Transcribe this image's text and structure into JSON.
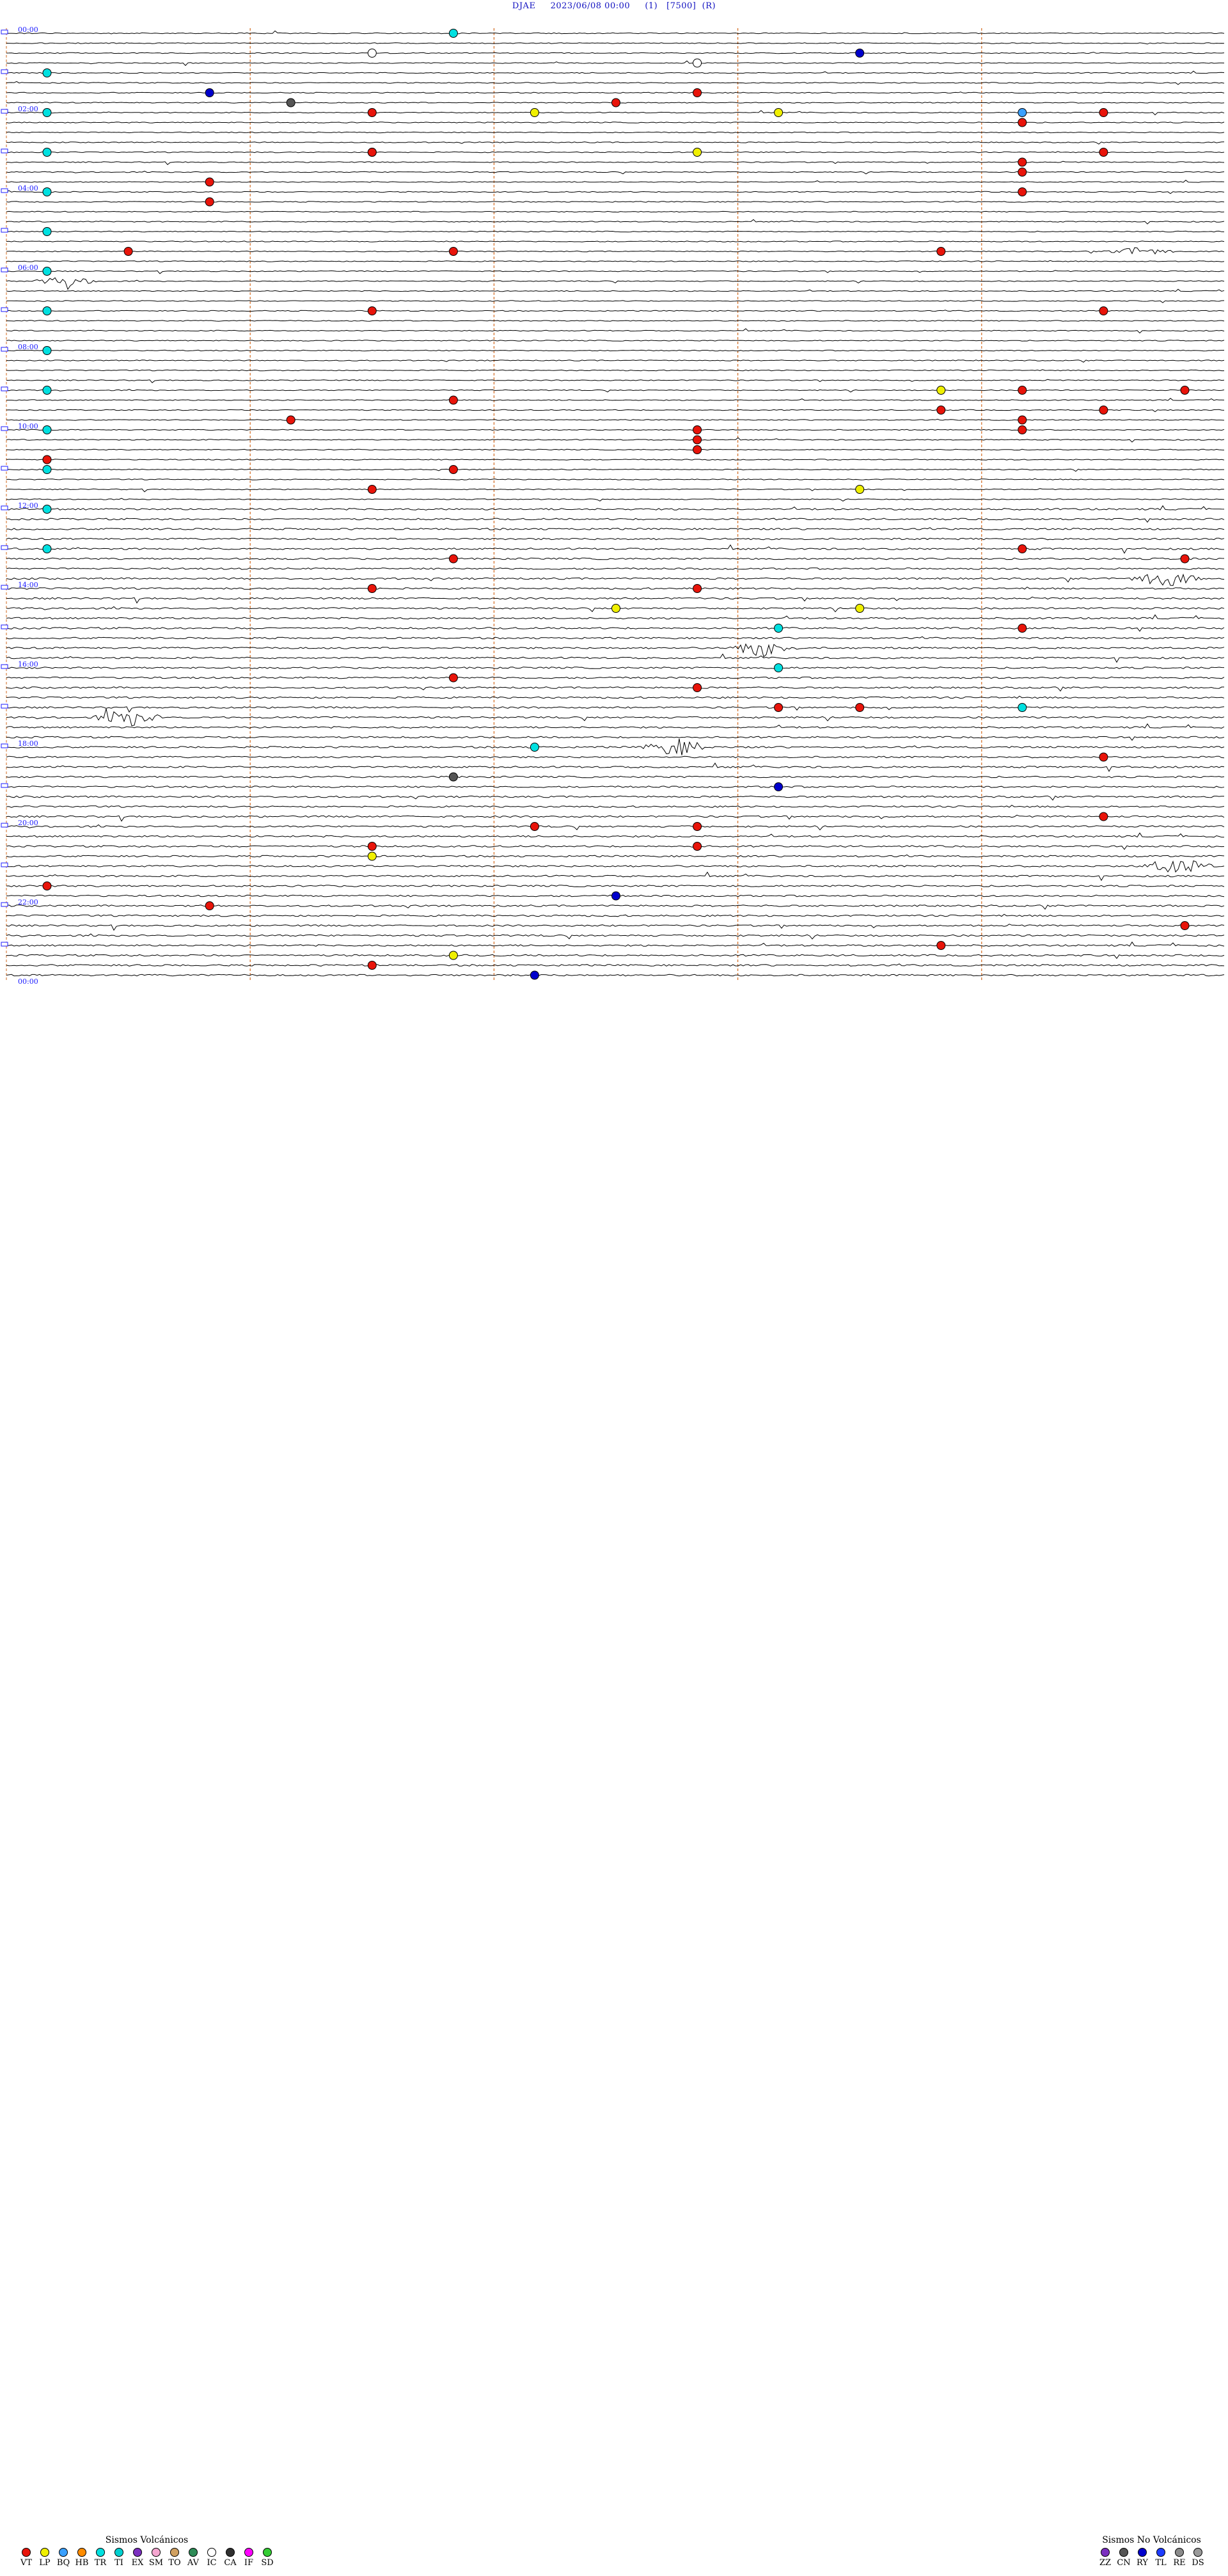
{
  "header": {
    "station": "DJAE",
    "datetime": "2023/06/08 00:00",
    "channel": "(1)",
    "scale": "[7500]",
    "mode": "(R)"
  },
  "chart_data": {
    "type": "helicorder",
    "start": "2023/06/08 00:00",
    "end": "2023/06/09 00:00",
    "rows": 96,
    "row_minutes": 15,
    "hour_labels": [
      "00:00",
      "02:00",
      "04:00",
      "06:00",
      "08:00",
      "10:00",
      "12:00",
      "14:00",
      "16:00",
      "18:00",
      "20:00",
      "22:00",
      "00:00"
    ],
    "column_marker_minutes": [
      3,
      6,
      9,
      12
    ],
    "colors": {
      "trace": "#000000",
      "hour_label": "#1a1aff",
      "minute_marker": "#d2691e",
      "VT": "#e8140a",
      "LP": "#f0f000",
      "HB": "#ff8c00",
      "TR": "#00e0e0",
      "CN": "#555555",
      "IC": "#ffffff",
      "BQ": "#3aa0ff",
      "AV": "#2e8b57",
      "RY": "#0000cc"
    },
    "events": [
      {
        "time": "00:05",
        "type": "TR"
      },
      {
        "time": "01:00",
        "type": "TR"
      },
      {
        "time": "02:00",
        "type": "TR"
      },
      {
        "time": "03:00",
        "type": "TR"
      },
      {
        "time": "04:00",
        "type": "TR"
      },
      {
        "time": "05:00",
        "type": "TR"
      },
      {
        "time": "06:00",
        "type": "TR"
      },
      {
        "time": "07:00",
        "type": "TR"
      },
      {
        "time": "08:00",
        "type": "TR"
      },
      {
        "time": "09:00",
        "type": "TR"
      },
      {
        "time": "10:00",
        "type": "TR"
      },
      {
        "time": "11:00",
        "type": "TR"
      },
      {
        "time": "00:34",
        "type": "IC"
      },
      {
        "time": "00:40",
        "type": "RY"
      },
      {
        "time": "00:53",
        "type": "IC"
      },
      {
        "time": "01:32",
        "type": "RY"
      },
      {
        "time": "01:38",
        "type": "VT"
      },
      {
        "time": "01:48",
        "type": "CN"
      },
      {
        "time": "01:52",
        "type": "VT"
      },
      {
        "time": "02:04",
        "type": "VT"
      },
      {
        "time": "02:06",
        "type": "LP"
      },
      {
        "time": "02:09",
        "type": "LP"
      },
      {
        "time": "02:12",
        "type": "BQ"
      },
      {
        "time": "02:13",
        "type": "VT"
      },
      {
        "time": "02:27",
        "type": "VT"
      },
      {
        "time": "03:04",
        "type": "LP"
      },
      {
        "time": "03:04",
        "type": "VT"
      },
      {
        "time": "03:08",
        "type": "LP"
      },
      {
        "time": "03:13",
        "type": "VT"
      },
      {
        "time": "03:27",
        "type": "VT"
      },
      {
        "time": "03:42",
        "type": "VT"
      },
      {
        "time": "03:47",
        "type": "VT"
      },
      {
        "time": "04:12",
        "type": "VT"
      },
      {
        "time": "04:17",
        "type": "VT"
      },
      {
        "time": "05:31",
        "type": "VT"
      },
      {
        "time": "05:35",
        "type": "VT"
      },
      {
        "time": "05:41",
        "type": "VT"
      },
      {
        "time": "07:04",
        "type": "VT"
      },
      {
        "time": "07:13",
        "type": "VT"
      },
      {
        "time": "09:11",
        "type": "LP"
      },
      {
        "time": "09:12",
        "type": "VT"
      },
      {
        "time": "09:14",
        "type": "VT"
      },
      {
        "time": "09:20",
        "type": "VT"
      },
      {
        "time": "09:41",
        "type": "VT"
      },
      {
        "time": "09:43",
        "type": "VT"
      },
      {
        "time": "09:48",
        "type": "VT"
      },
      {
        "time": "09:57",
        "type": "VT"
      },
      {
        "time": "10:08",
        "type": "VT"
      },
      {
        "time": "10:12",
        "type": "VT"
      },
      {
        "time": "10:23",
        "type": "VT"
      },
      {
        "time": "10:38",
        "type": "VT"
      },
      {
        "time": "10:45",
        "type": "VT"
      },
      {
        "time": "11:05",
        "type": "VT"
      },
      {
        "time": "11:34",
        "type": "VT"
      },
      {
        "time": "11:40",
        "type": "LP"
      },
      {
        "time": "12:00",
        "type": "TR"
      },
      {
        "time": "13:00",
        "type": "TR"
      },
      {
        "time": "13:12",
        "type": "VT"
      },
      {
        "time": "13:20",
        "type": "VT"
      },
      {
        "time": "13:29",
        "type": "VT"
      },
      {
        "time": "14:04",
        "type": "VT"
      },
      {
        "time": "14:08",
        "type": "VT"
      },
      {
        "time": "14:37",
        "type": "LP"
      },
      {
        "time": "14:40",
        "type": "LP"
      },
      {
        "time": "15:09",
        "type": "TR"
      },
      {
        "time": "15:12",
        "type": "VT"
      },
      {
        "time": "16:09",
        "type": "TR"
      },
      {
        "time": "16:20",
        "type": "VT"
      },
      {
        "time": "16:38",
        "type": "VT"
      },
      {
        "time": "17:09",
        "type": "VT"
      },
      {
        "time": "17:10",
        "type": "VT"
      },
      {
        "time": "17:12",
        "type": "TR"
      },
      {
        "time": "18:06",
        "type": "TR"
      },
      {
        "time": "18:28",
        "type": "VT"
      },
      {
        "time": "18:50",
        "type": "CN"
      },
      {
        "time": "19:09",
        "type": "RY"
      },
      {
        "time": "19:58",
        "type": "VT"
      },
      {
        "time": "20:06",
        "type": "VT"
      },
      {
        "time": "20:08",
        "type": "VT"
      },
      {
        "time": "20:34",
        "type": "VT"
      },
      {
        "time": "20:38",
        "type": "VT"
      },
      {
        "time": "20:49",
        "type": "LP"
      },
      {
        "time": "21:30",
        "type": "VT"
      },
      {
        "time": "21:52",
        "type": "RY"
      },
      {
        "time": "22:02",
        "type": "VT"
      },
      {
        "time": "22:44",
        "type": "VT"
      },
      {
        "time": "23:11",
        "type": "VT"
      },
      {
        "time": "23:20",
        "type": "LP"
      },
      {
        "time": "23:34",
        "type": "VT"
      },
      {
        "time": "23:51",
        "type": "RY"
      }
    ]
  },
  "legend_volcanic": {
    "title": "Sismos Volcánicos",
    "items": [
      {
        "code": "VT",
        "color": "#e8140a"
      },
      {
        "code": "LP",
        "color": "#f0f000"
      },
      {
        "code": "BQ",
        "color": "#3aa0ff"
      },
      {
        "code": "HB",
        "color": "#ff8c00"
      },
      {
        "code": "TR",
        "color": "#00e0e0"
      },
      {
        "code": "TI",
        "color": "#00d0d0"
      },
      {
        "code": "EX",
        "color": "#7b2fbf"
      },
      {
        "code": "SM",
        "color": "#f5a6d0"
      },
      {
        "code": "TO",
        "color": "#d0a060"
      },
      {
        "code": "AV",
        "color": "#2e8b57"
      },
      {
        "code": "IC",
        "color": "#ffffff"
      },
      {
        "code": "CA",
        "color": "#303030"
      },
      {
        "code": "IF",
        "color": "#ff00ff"
      },
      {
        "code": "SD",
        "color": "#33cc33"
      }
    ]
  },
  "legend_nonvolcanic": {
    "title": "Sismos No Volcánicos",
    "items": [
      {
        "code": "ZZ",
        "color": "#7b2fbf"
      },
      {
        "code": "CN",
        "color": "#555555"
      },
      {
        "code": "RY",
        "color": "#0000cc"
      },
      {
        "code": "TL",
        "color": "#1e3cff"
      },
      {
        "code": "RE",
        "color": "#8a8a8a"
      },
      {
        "code": "DS",
        "color": "#999999"
      }
    ]
  }
}
